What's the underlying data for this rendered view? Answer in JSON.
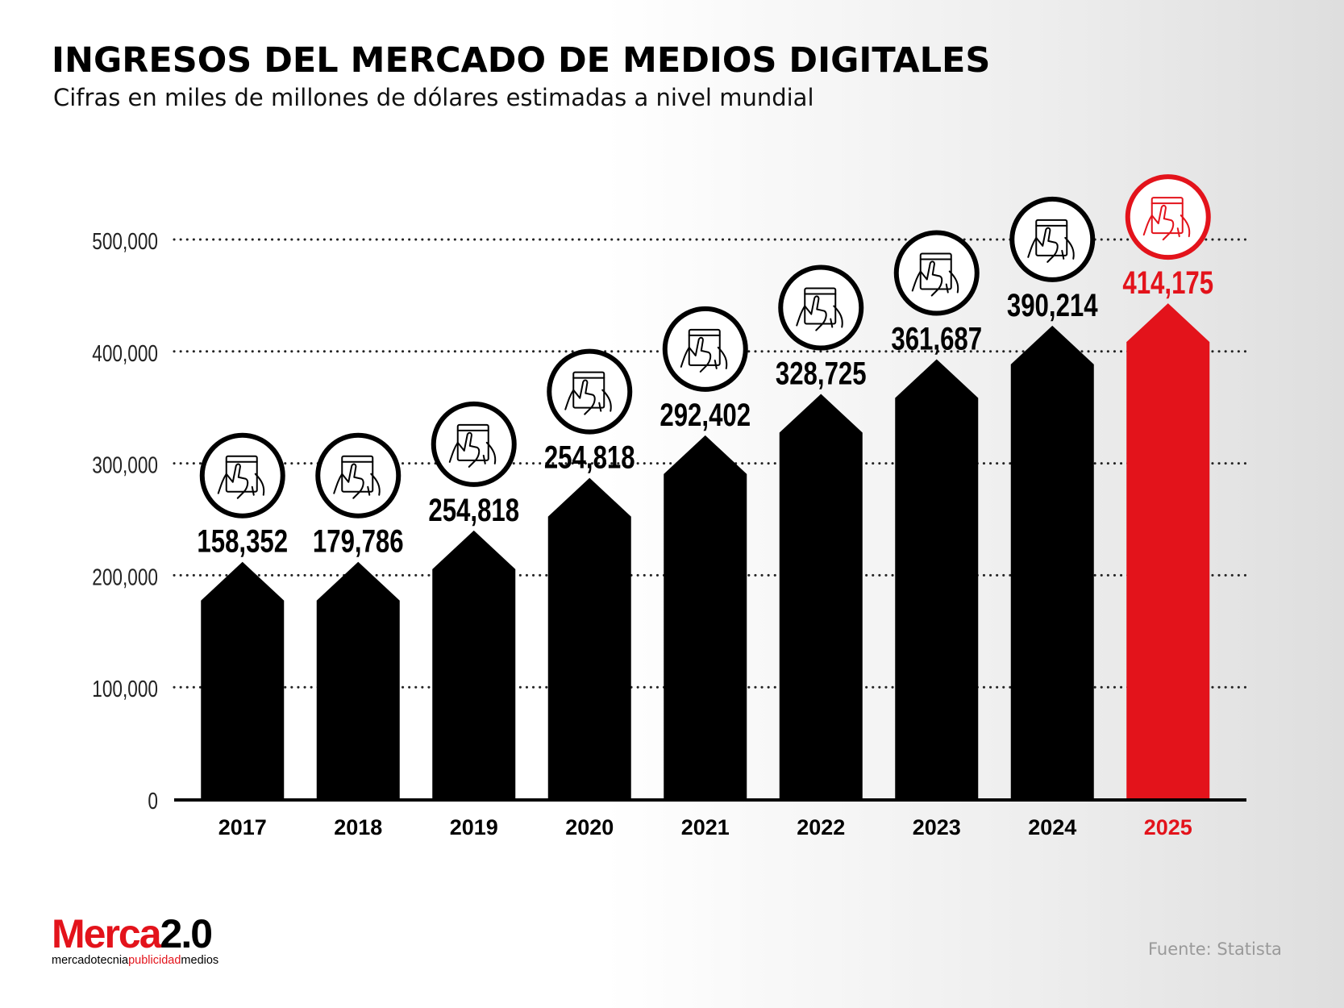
{
  "title": "INGRESOS DEL MERCADO DE MEDIOS DIGITALES",
  "subtitle": "Cifras en miles de millones de dólares estimadas a nivel mundial",
  "source": "Fuente: Statista",
  "logo": {
    "main_red": "Merca",
    "main_black": "2.0",
    "tag_black_1": "mercadotecnia",
    "tag_red": "publicidad",
    "tag_black_2": "medios"
  },
  "colors": {
    "bar": "#000000",
    "highlight": "#e3131b",
    "gridline": "#222222"
  },
  "icon": "tablet-touch-icon",
  "chart_data": {
    "type": "bar",
    "categories": [
      "2017",
      "2018",
      "2019",
      "2020",
      "2021",
      "2022",
      "2023",
      "2024",
      "2025"
    ],
    "values": [
      158352,
      179786,
      254818,
      254818,
      292402,
      328725,
      361687,
      390214,
      414175
    ],
    "value_labels": [
      "158,352",
      "179,786",
      "254,818",
      "254,818",
      "292,402",
      "328,725",
      "361,687",
      "390,214",
      "414,175"
    ],
    "bar_heights": [
      212000,
      212000,
      240000,
      287000,
      325000,
      362000,
      393000,
      423000,
      443000
    ],
    "highlight_index": 8,
    "y_ticks": [
      0,
      100000,
      200000,
      300000,
      400000,
      500000
    ],
    "y_tick_labels": [
      "0",
      "100,000",
      "200,000",
      "300,000",
      "400,000",
      "500,000"
    ],
    "ylim": [
      0,
      500000
    ],
    "grid": true,
    "xlabel": "",
    "ylabel": ""
  }
}
